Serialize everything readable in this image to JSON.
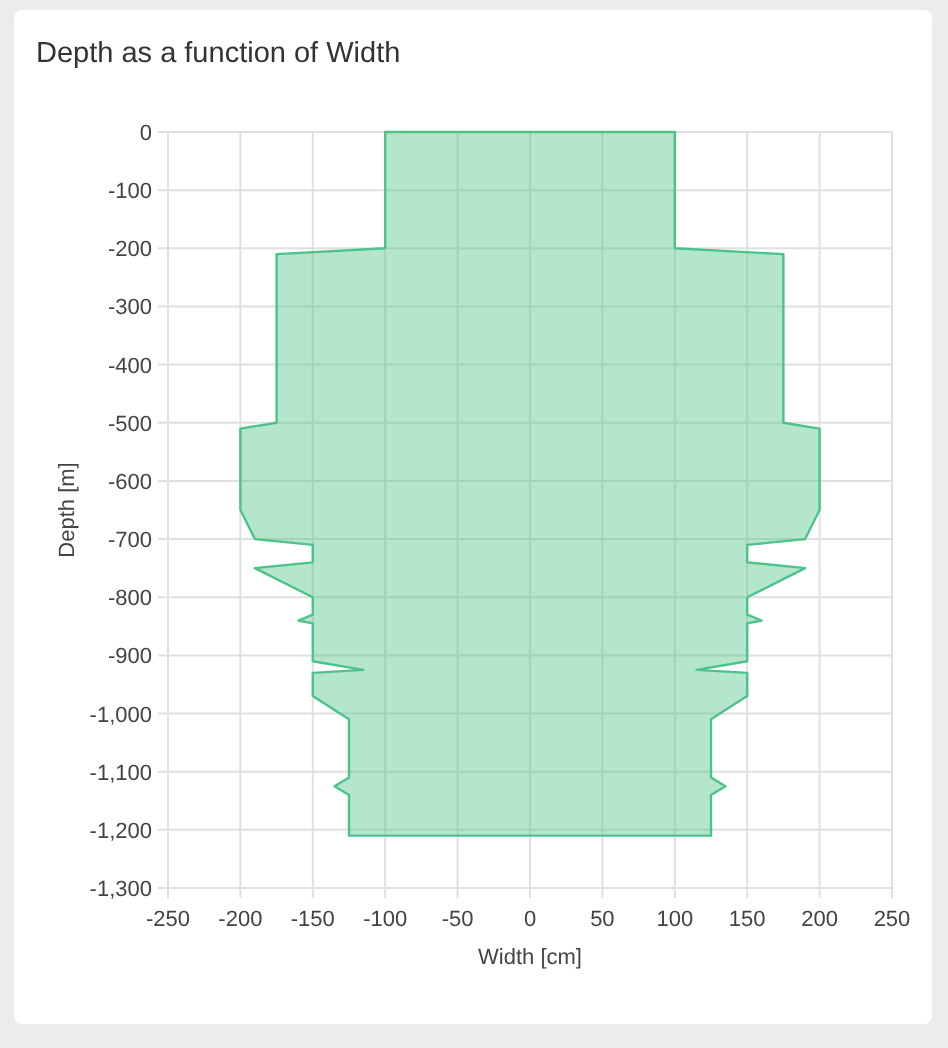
{
  "chart_data": {
    "type": "area",
    "title": "Depth as a function of Width",
    "xlabel": "Width [cm]",
    "ylabel": "Depth [m]",
    "series": [
      {
        "color": "#4cc38a",
        "x": [
          100,
          100,
          175,
          175,
          200,
          200,
          190,
          150,
          150,
          190,
          150,
          150,
          160,
          150,
          150,
          115,
          150,
          150,
          125,
          125,
          135,
          125,
          125,
          -125,
          -125,
          -135,
          -125,
          -125,
          -150,
          -150,
          -115,
          -150,
          -150,
          -160,
          -150,
          -150,
          -190,
          -150,
          -150,
          -190,
          -200,
          -200,
          -175,
          -175,
          -100,
          -100
        ],
        "values": [
          0,
          -200,
          -210,
          -500,
          -510,
          -650,
          -700,
          -710,
          -740,
          -750,
          -800,
          -830,
          -840,
          -845,
          -910,
          -925,
          -930,
          -970,
          -1010,
          -1110,
          -1125,
          -1140,
          -1210,
          -1210,
          -1140,
          -1125,
          -1110,
          -1010,
          -970,
          -930,
          -925,
          -910,
          -845,
          -840,
          -830,
          -800,
          -750,
          -740,
          -710,
          -700,
          -650,
          -510,
          -500,
          -210,
          -200,
          0
        ]
      }
    ],
    "xlim": [
      -250,
      250
    ],
    "xticks": [
      -250,
      -200,
      -150,
      -100,
      -50,
      0,
      50,
      100,
      150,
      200,
      250
    ],
    "ylim": [
      -1300,
      0
    ],
    "yticks": [
      0,
      -100,
      -200,
      -300,
      -400,
      -500,
      -600,
      -700,
      -800,
      -900,
      {
        "value": -1000,
        "label": "-1,000"
      },
      {
        "value": -1100,
        "label": "-1,100"
      },
      {
        "value": -1200,
        "label": "-1,200"
      },
      {
        "value": -1300,
        "label": "-1,300"
      }
    ],
    "grid": true
  }
}
